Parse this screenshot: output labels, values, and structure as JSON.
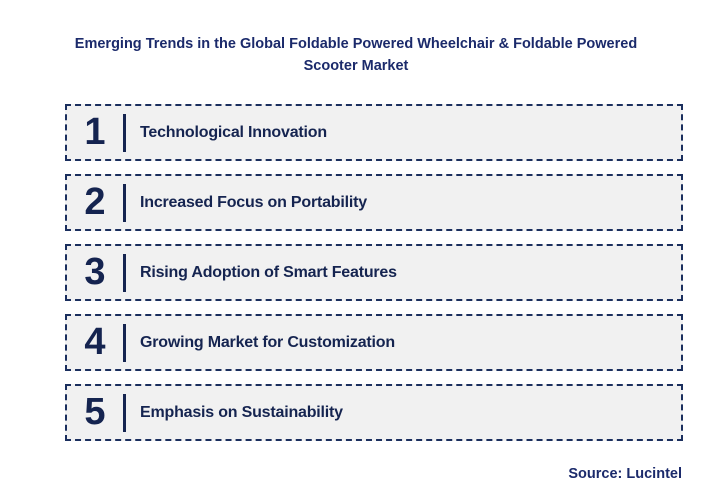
{
  "title": {
    "text": "Emerging Trends in the Global Foldable Powered Wheelchair & Foldable Powered Scooter Market"
  },
  "trends": [
    {
      "number": "1",
      "label": "Technological Innovation"
    },
    {
      "number": "2",
      "label": "Increased Focus on Portability"
    },
    {
      "number": "3",
      "label": "Rising Adoption of Smart Features"
    },
    {
      "number": "4",
      "label": "Growing Market for Customization"
    },
    {
      "number": "5",
      "label": "Emphasis on Sustainability"
    }
  ],
  "source": {
    "text": "Source: Lucintel"
  },
  "colors": {
    "title_text": "#1B2A6B",
    "item_text": "#152450",
    "row_bg": "#F1F1F1",
    "row_border": "#1B2F5E",
    "divider": "#152450",
    "background": "#FFFFFF"
  }
}
